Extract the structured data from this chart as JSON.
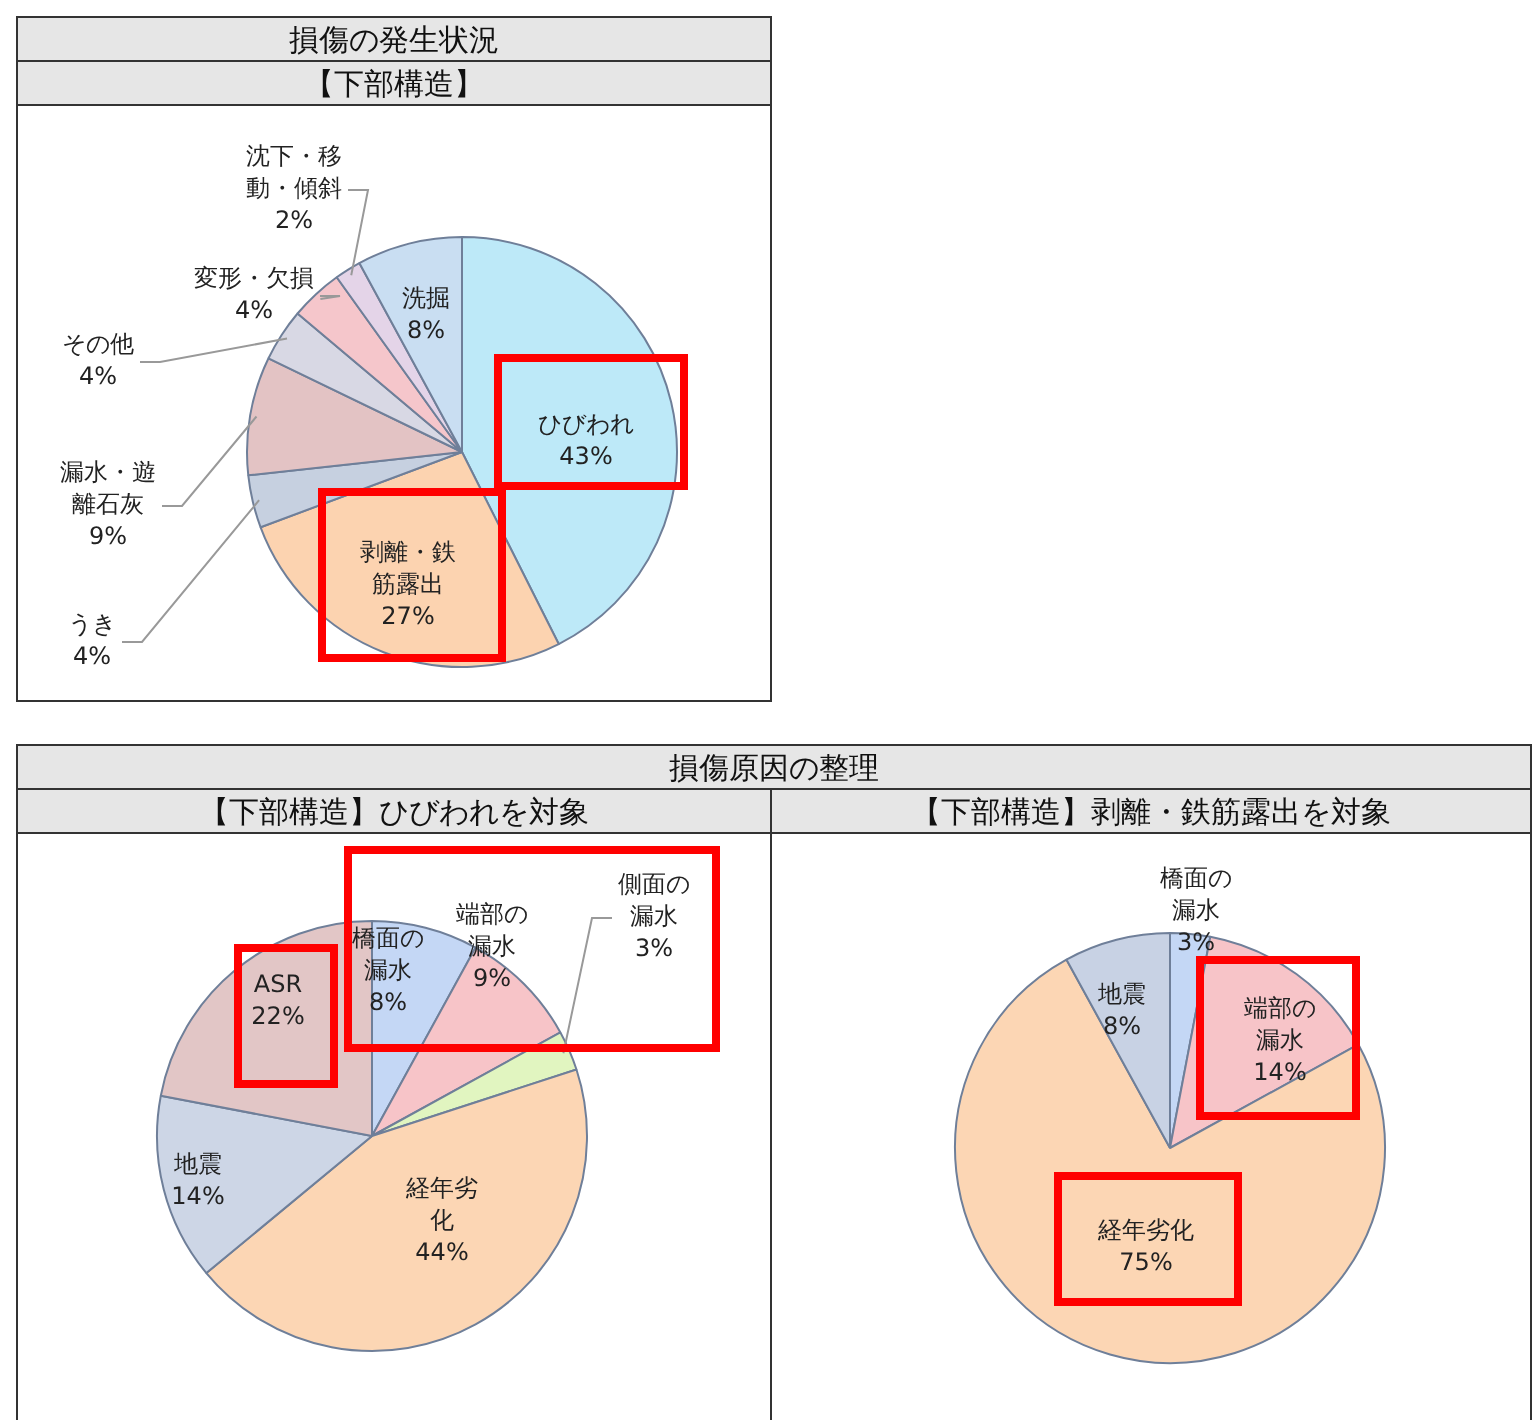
{
  "chart_data": [
    {
      "type": "pie",
      "title": "損傷の発生状況",
      "subtitle": "【下部構造】",
      "categories": [
        "ひびわれ",
        "剥離・鉄筋露出",
        "うき",
        "漏水・遊離石灰",
        "その他",
        "変形・欠損",
        "沈下・移動・傾斜",
        "洗掘"
      ],
      "values": [
        43,
        27,
        4,
        9,
        4,
        4,
        2,
        8
      ],
      "value_labels": [
        "43%",
        "27%",
        "4%",
        "9%",
        "4%",
        "4%",
        "2%",
        "8%"
      ],
      "colors": [
        "#bde9f8",
        "#fcd3b0",
        "#c6d0e0",
        "#e3c3c4",
        "#d8d8e4",
        "#f5c6cb",
        "#e4d4e8",
        "#c9def2"
      ],
      "legend": false
    },
    {
      "type": "pie",
      "title": "損傷原因の整理",
      "subtitle": "【下部構造】ひびわれを対象",
      "categories": [
        "橋面の漏水",
        "端部の漏水",
        "側面の漏水",
        "経年劣化",
        "地震",
        "ASR"
      ],
      "values": [
        8,
        9,
        3,
        44,
        14,
        22
      ],
      "value_labels": [
        "8%",
        "9%",
        "3%",
        "44%",
        "14%",
        "22%"
      ],
      "colors": [
        "#c4d7f5",
        "#f7c4c8",
        "#e1f5c0",
        "#fcd6b4",
        "#cdd6e6",
        "#e2c6c6"
      ],
      "legend": false
    },
    {
      "type": "pie",
      "subtitle": "【下部構造】剥離・鉄筋露出を対象",
      "categories": [
        "橋面の漏水",
        "端部の漏水",
        "経年劣化",
        "地震"
      ],
      "values": [
        3,
        14,
        75,
        8
      ],
      "value_labels": [
        "3%",
        "14%",
        "75%",
        "8%"
      ],
      "colors": [
        "#c4d7f5",
        "#f7c4c8",
        "#fcd6b4",
        "#c8d2e4"
      ],
      "legend": false
    }
  ]
}
